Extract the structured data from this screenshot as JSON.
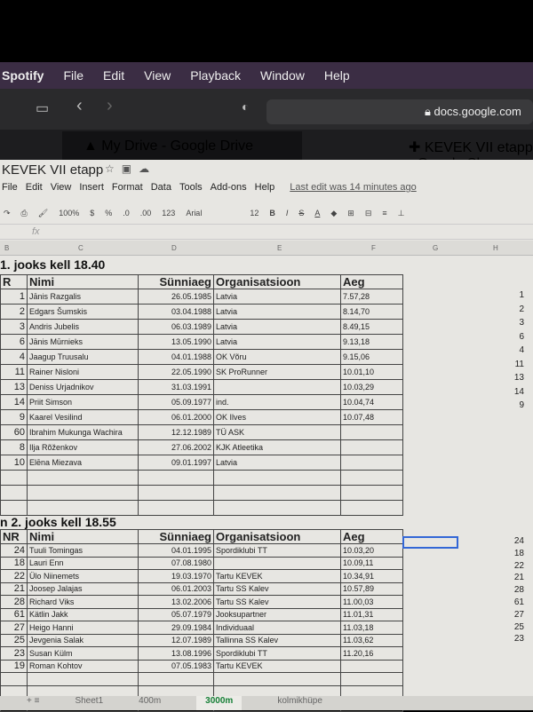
{
  "menubar": {
    "app": "Spotify",
    "items": [
      "File",
      "Edit",
      "View",
      "Playback",
      "Window",
      "Help"
    ]
  },
  "browser": {
    "url": "docs.google.com",
    "tabs": [
      "My Drive - Google Drive",
      "KEVEK VII etapp - Google Sh"
    ]
  },
  "doc": {
    "title": "KEVEK VII etapp",
    "menus": [
      "File",
      "Edit",
      "View",
      "Insert",
      "Format",
      "Data",
      "Tools",
      "Add-ons",
      "Help"
    ],
    "last_edit": "Last edit was 14 minutes ago"
  },
  "toolbar": {
    "zoom": "100%",
    "currency": "$",
    "percent": "%",
    "dec_less": ".0",
    "dec_more": ".00",
    "format": "123",
    "font": "Arial",
    "size": "12",
    "bold": "B",
    "italic": "I",
    "strike": "S",
    "color": "A"
  },
  "formula_bar": {
    "fx": "fx"
  },
  "columns": [
    "B",
    "C",
    "D",
    "E",
    "F",
    "G",
    "H"
  ],
  "race1": {
    "title": "1. jooks kell 18.40",
    "headers": [
      "R",
      "Nimi",
      "Sünniaeg",
      "Organisatsioon",
      "Aeg"
    ],
    "rows": [
      [
        "1",
        "Jānis Razgalis",
        "26.05.1985",
        "Latvia",
        "7.57,28"
      ],
      [
        "2",
        "Edgars Šumskis",
        "03.04.1988",
        "Latvia",
        "8.14,70"
      ],
      [
        "3",
        "Andris Jubelis",
        "06.03.1989",
        "Latvia",
        "8.49,15"
      ],
      [
        "6",
        "Jānis Mūrnieks",
        "13.05.1990",
        "Latvia",
        "9.13,18"
      ],
      [
        "4",
        "Jaagup Truusalu",
        "04.01.1988",
        "OK Võru",
        "9.15,06"
      ],
      [
        "11",
        "Rainer Nisloni",
        "22.05.1990",
        "SK ProRunner",
        "10.01,10"
      ],
      [
        "13",
        "Deniss Urjadnikov",
        "31.03.1991",
        "",
        "10.03,29"
      ],
      [
        "14",
        "Priit Simson",
        "05.09.1977",
        "ind.",
        "10.04,74"
      ],
      [
        "9",
        "Kaarel Vesilind",
        "06.01.2000",
        "OK Ilves",
        "10.07,48"
      ],
      [
        "60",
        "Ibrahim Mukunga Wachira",
        "12.12.1989",
        "TÜ ASK",
        ""
      ],
      [
        "8",
        "Ilja Rõženkov",
        "27.06.2002",
        "KJK Atleetika",
        ""
      ],
      [
        "10",
        "Elēna Miezava",
        "09.01.1997",
        "Latvia",
        ""
      ]
    ],
    "side": [
      "1",
      "2",
      "3",
      "6",
      "4",
      "11",
      "13",
      "14",
      "9"
    ]
  },
  "race2": {
    "title": "n 2. jooks kell 18.55",
    "headers": [
      "NR",
      "Nimi",
      "Sünniaeg",
      "Organisatsioon",
      "Aeg"
    ],
    "rows": [
      [
        "24",
        "Tuuli Tomingas",
        "04.01.1995",
        "Spordiklubi TT",
        "10.03,20"
      ],
      [
        "18",
        "Lauri Enn",
        "07.08.1980",
        "",
        "10.09,11"
      ],
      [
        "22",
        "Ülo Niinemets",
        "19.03.1970",
        "Tartu KEVEK",
        "10.34,91"
      ],
      [
        "21",
        "Joosep Jalajas",
        "06.01.2003",
        "Tartu SS Kalev",
        "10.57,89"
      ],
      [
        "28",
        "Richard Viks",
        "13.02.2006",
        "Tartu SS Kalev",
        "11.00,03"
      ],
      [
        "61",
        "Kätlin Jakk",
        "05.07.1979",
        "Jooksupartner",
        "11.01,31"
      ],
      [
        "27",
        "Heigo Hanni",
        "29.09.1984",
        "Individuaal",
        "11.03,18"
      ],
      [
        "25",
        "Jevgenia Salak",
        "12.07.1989",
        "Tallinna SS Kalev",
        "11.03,62"
      ],
      [
        "23",
        "Susan Külm",
        "13.08.1996",
        "Spordiklubi TT",
        "11.20,16"
      ],
      [
        "19",
        "Roman Kohtov",
        "07.05.1983",
        "Tartu KEVEK",
        ""
      ]
    ],
    "side": [
      "24",
      "18",
      "22",
      "21",
      "28",
      "61",
      "27",
      "25",
      "23"
    ]
  },
  "sheet_tabs": [
    "Sheet1",
    "400m",
    "3000m",
    "kolmikhüpe"
  ],
  "active_sheet": "3000m"
}
